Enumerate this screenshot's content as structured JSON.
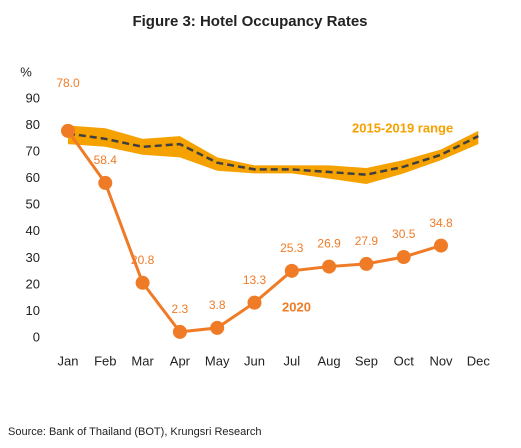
{
  "chart_data": {
    "type": "line",
    "title": "Figure 3: Hotel Occupancy Rates",
    "y_label": "%",
    "source": "Source: Bank of Thailand (BOT), Krungsri Research",
    "categories": [
      "Jan",
      "Feb",
      "Mar",
      "Apr",
      "May",
      "Jun",
      "Jul",
      "Aug",
      "Sep",
      "Oct",
      "Nov",
      "Dec"
    ],
    "ylim": [
      0,
      90
    ],
    "yticks": [
      0,
      10,
      20,
      30,
      40,
      50,
      60,
      70,
      80,
      90
    ],
    "grid": false,
    "series": [
      {
        "name": "2015-2019 range",
        "color": "#f5a100",
        "upper": [
          80,
          79,
          75,
          76,
          68,
          65,
          65,
          65,
          64,
          67,
          71,
          78
        ],
        "lower": [
          73,
          72,
          69,
          68,
          63,
          62,
          62,
          60,
          58,
          62,
          67,
          73
        ]
      },
      {
        "color": "#3f3f3f",
        "dashed": true,
        "values": [
          77,
          75,
          72,
          73,
          66,
          63.5,
          63.5,
          62.5,
          61.5,
          64.5,
          69,
          76
        ]
      },
      {
        "name": "2020",
        "color": "#f07b27",
        "markers": true,
        "values": [
          78,
          58.4,
          20.8,
          2.3,
          3.8,
          13.3,
          25.3,
          26.9,
          27.9,
          30.5,
          34.8,
          null
        ],
        "value_labels": [
          "78.0",
          "58.4",
          "20.8",
          "2.3",
          "3.8",
          "13.3",
          "25.3",
          "26.9",
          "27.9",
          "30.5",
          "34.8",
          null
        ]
      }
    ]
  }
}
